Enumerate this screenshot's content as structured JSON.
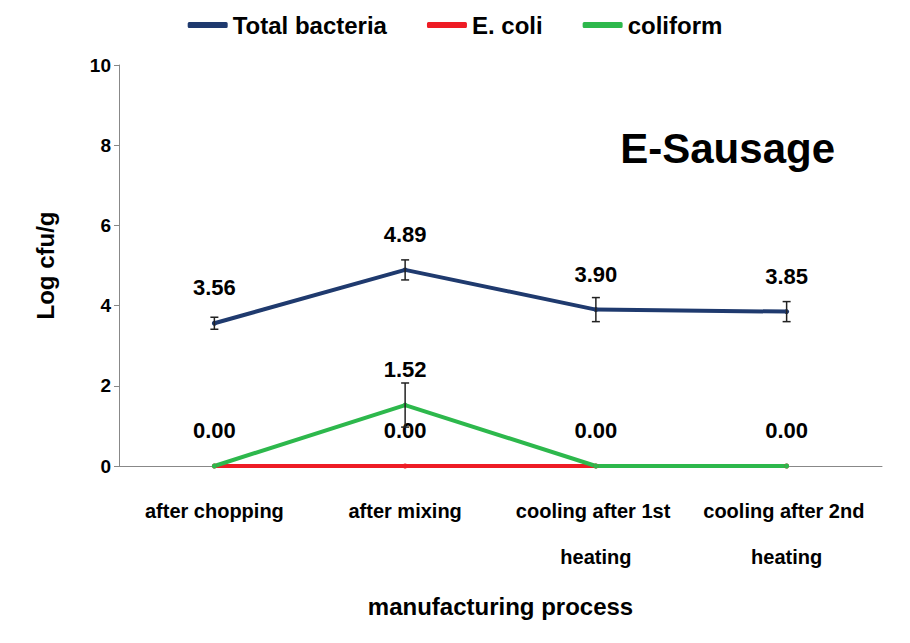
{
  "chart_data": {
    "type": "line",
    "title": "E-Sausage",
    "x_label": "manufacturing process",
    "y_label": "Log cfu/g",
    "categories": [
      "after chopping",
      "after mixing",
      "cooling after 1st heating",
      "cooling after 2nd heating"
    ],
    "series": [
      {
        "name": "Total bacteria",
        "color": "#1f3a6e",
        "values": [
          3.56,
          4.89,
          3.9,
          3.85
        ],
        "errors": [
          0.15,
          0.25,
          0.3,
          0.25
        ],
        "value_labels": [
          "3.56",
          "4.89",
          "3.90",
          "3.85"
        ]
      },
      {
        "name": "E. coli",
        "color": "#ee1c25",
        "values": [
          0,
          0,
          0,
          0
        ],
        "errors": [
          0,
          0,
          0,
          0
        ],
        "value_labels": [
          "0.00",
          "0.00",
          "0.00",
          "0.00"
        ]
      },
      {
        "name": "coliform",
        "color": "#2db84c",
        "values": [
          0,
          1.52,
          0,
          0
        ],
        "errors": [
          0,
          0.55,
          0,
          0
        ],
        "value_labels": [
          null,
          "1.52",
          null,
          null
        ]
      }
    ],
    "ylim": [
      0,
      10
    ],
    "yticks": [
      0,
      2,
      4,
      6,
      8,
      10
    ],
    "grid": false,
    "legend": "top",
    "data_labels": true,
    "marker": "circle"
  }
}
